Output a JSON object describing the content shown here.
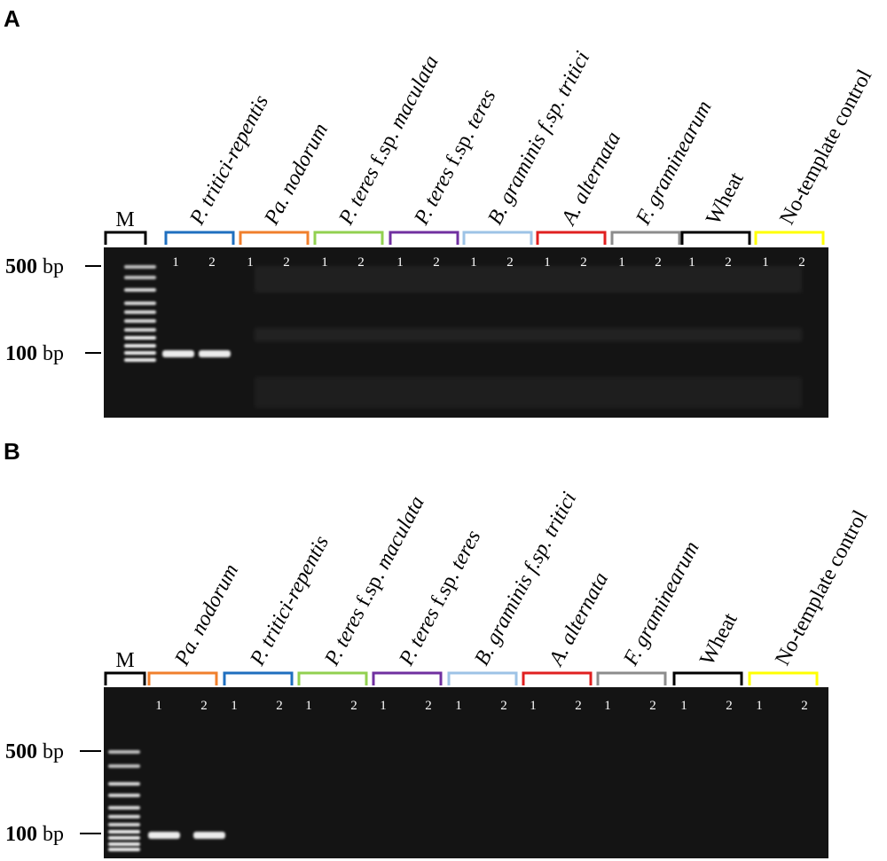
{
  "panels": [
    {
      "letter": "A",
      "marker_label": "M",
      "size_500_value": "500",
      "size_100_value": "100",
      "size_unit": "bp",
      "groups": [
        {
          "italic_part": "P. tritici-repentis",
          "roman_part": "",
          "italic_tail": "",
          "color": "#1f6fbf",
          "lane1": "1",
          "lane2": "2",
          "band": true
        },
        {
          "italic_part": "Pa. nodorum",
          "roman_part": "",
          "italic_tail": "",
          "color": "#f07f2c",
          "lane1": "1",
          "lane2": "2",
          "band": false
        },
        {
          "italic_part": "P. teres",
          "roman_part": " f.sp. ",
          "italic_tail": "maculata",
          "color": "#92d050",
          "lane1": "1",
          "lane2": "2",
          "band": false
        },
        {
          "italic_part": "P. teres",
          "roman_part": " f.sp. ",
          "italic_tail": "teres",
          "color": "#7030a0",
          "lane1": "1",
          "lane2": "2",
          "band": false
        },
        {
          "italic_part": "B. graminis f.sp. tritici",
          "roman_part": "",
          "italic_tail": "",
          "color": "#9dc3e6",
          "lane1": "1",
          "lane2": "2",
          "band": false
        },
        {
          "italic_part": "A. alternata",
          "roman_part": "",
          "italic_tail": "",
          "color": "#e02020",
          "lane1": "1",
          "lane2": "2",
          "band": false
        },
        {
          "italic_part": "F. graminearum",
          "roman_part": "",
          "italic_tail": "",
          "color": "#8c8c8c",
          "lane1": "1",
          "lane2": "2",
          "band": false
        },
        {
          "italic_part": "",
          "roman_part": "Wheat",
          "italic_tail": "",
          "color": "#000000",
          "lane1": "1",
          "lane2": "2",
          "band": false
        },
        {
          "italic_part": "",
          "roman_part": "No-template control",
          "italic_tail": "",
          "color": "#ffff00",
          "lane1": "1",
          "lane2": "2",
          "band": false
        }
      ]
    },
    {
      "letter": "B",
      "marker_label": "M",
      "size_500_value": "500",
      "size_100_value": "100",
      "size_unit": "bp",
      "groups": [
        {
          "italic_part": "Pa. nodorum",
          "roman_part": "",
          "italic_tail": "",
          "color": "#f07f2c",
          "lane1": "1",
          "lane2": "2",
          "band": true
        },
        {
          "italic_part": "P. tritici-repentis",
          "roman_part": "",
          "italic_tail": "",
          "color": "#1f6fbf",
          "lane1": "1",
          "lane2": "2",
          "band": false
        },
        {
          "italic_part": "P. teres",
          "roman_part": " f.sp. ",
          "italic_tail": "maculata",
          "color": "#92d050",
          "lane1": "1",
          "lane2": "2",
          "band": false
        },
        {
          "italic_part": "P. teres",
          "roman_part": " f.sp. ",
          "italic_tail": "teres",
          "color": "#7030a0",
          "lane1": "1",
          "lane2": "2",
          "band": false
        },
        {
          "italic_part": "B. graminis f.sp. tritici",
          "roman_part": "",
          "italic_tail": "",
          "color": "#9dc3e6",
          "lane1": "1",
          "lane2": "2",
          "band": false
        },
        {
          "italic_part": "A. alternata",
          "roman_part": "",
          "italic_tail": "",
          "color": "#e02020",
          "lane1": "1",
          "lane2": "2",
          "band": false
        },
        {
          "italic_part": "F. graminearum",
          "roman_part": "",
          "italic_tail": "",
          "color": "#8c8c8c",
          "lane1": "1",
          "lane2": "2",
          "band": false
        },
        {
          "italic_part": "",
          "roman_part": "Wheat",
          "italic_tail": "",
          "color": "#000000",
          "lane1": "1",
          "lane2": "2",
          "band": false
        },
        {
          "italic_part": "",
          "roman_part": "No-template control",
          "italic_tail": "",
          "color": "#ffff00",
          "lane1": "1",
          "lane2": "2",
          "band": false
        }
      ]
    }
  ]
}
